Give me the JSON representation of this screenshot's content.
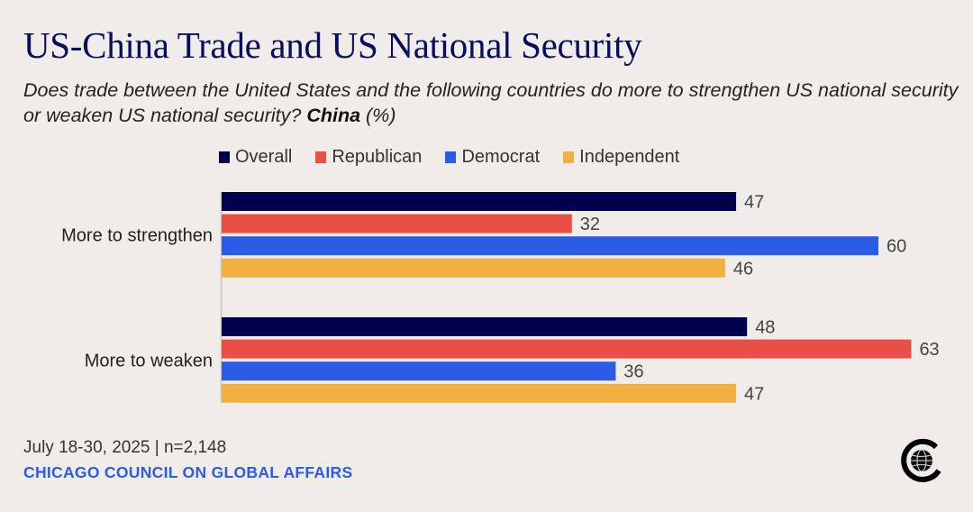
{
  "header": {
    "title": "US-China Trade and US National Security",
    "subtitle_pre": "Does trade between the United States and the following countries do more to strengthen US national security or weaken US national security? ",
    "subtitle_bold": "China",
    "subtitle_post": " (%)"
  },
  "footer": {
    "date_sample": "July 18-30, 2025 | n=2,148",
    "organization": "CHICAGO COUNCIL ON GLOBAL AFFAIRS",
    "logo_icon": "globe-c-logo-icon"
  },
  "chart_data": {
    "type": "bar",
    "orientation": "horizontal",
    "title": "US-China Trade and US National Security",
    "xlabel": "",
    "ylabel": "",
    "xlim": [
      0,
      63
    ],
    "grid": false,
    "legend_position": "top",
    "categories": [
      "More to strengthen",
      "More to weaken"
    ],
    "series": [
      {
        "name": "Overall",
        "color": "#00004d",
        "values": [
          47,
          48
        ]
      },
      {
        "name": "Republican",
        "color": "#ea4f46",
        "values": [
          32,
          63
        ]
      },
      {
        "name": "Democrat",
        "color": "#2b5ce6",
        "values": [
          60,
          36
        ]
      },
      {
        "name": "Independent",
        "color": "#f2b042",
        "values": [
          46,
          47
        ]
      }
    ],
    "data_labels": true
  }
}
